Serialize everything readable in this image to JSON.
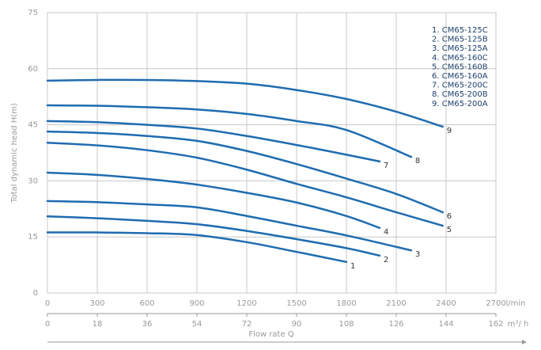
{
  "chart_data": {
    "type": "line",
    "ylabel": "Total dynamic head H(m)",
    "xlabel": "Flow rate Q",
    "xunit": "l/min",
    "x2unit": "m³/ h",
    "xlim": [
      0,
      2700
    ],
    "xticks": [
      0,
      300,
      600,
      900,
      1200,
      1500,
      1800,
      2100,
      2400,
      2700
    ],
    "x2lim": [
      0,
      162
    ],
    "x2ticks": [
      0,
      18,
      36,
      54,
      72,
      90,
      108,
      126,
      144,
      162
    ],
    "ylim": [
      0,
      75
    ],
    "yticks": [
      0,
      15,
      30,
      45,
      60,
      75
    ],
    "grid": true,
    "color": "#1e6cb0",
    "series": [
      {
        "name": "1. CM65-125C",
        "label": "1",
        "x": [
          0,
          300,
          600,
          900,
          1200,
          1500,
          1800
        ],
        "values": [
          16.2,
          16.2,
          16,
          15.5,
          13.6,
          11,
          8.3
        ]
      },
      {
        "name": "2. CM65-125B",
        "label": "2",
        "x": [
          0,
          300,
          600,
          900,
          1200,
          1500,
          1800,
          2000
        ],
        "values": [
          20.5,
          20,
          19.3,
          18.4,
          16.6,
          14.4,
          12,
          10
        ]
      },
      {
        "name": "3. CM65-125A",
        "label": "3",
        "x": [
          0,
          300,
          600,
          900,
          1200,
          1500,
          1800,
          2190
        ],
        "values": [
          24.6,
          24.3,
          23.7,
          22.9,
          20.6,
          18,
          15.4,
          11.4
        ]
      },
      {
        "name": "4. CM65-160C",
        "label": "4",
        "x": [
          0,
          300,
          600,
          900,
          1200,
          1500,
          1800,
          2000
        ],
        "values": [
          32.2,
          31.6,
          30.5,
          29,
          26.8,
          24.2,
          20.6,
          17.4
        ]
      },
      {
        "name": "5. CM65-160B",
        "label": "5",
        "x": [
          0,
          300,
          600,
          900,
          1200,
          1500,
          1800,
          2100,
          2380
        ],
        "values": [
          40.2,
          39.5,
          38.2,
          36.2,
          33,
          29.2,
          25.6,
          21.6,
          18
        ]
      },
      {
        "name": "6. CM65-160A",
        "label": "6",
        "x": [
          0,
          300,
          600,
          900,
          1200,
          1500,
          1800,
          2100,
          2380
        ],
        "values": [
          43.2,
          42.8,
          42,
          40.7,
          38,
          34.5,
          30.6,
          26.5,
          21.6
        ]
      },
      {
        "name": "7. CM65-200C",
        "label": "7",
        "x": [
          0,
          300,
          600,
          900,
          1200,
          1500,
          1800,
          2000
        ],
        "values": [
          46,
          45.7,
          45,
          44,
          42,
          39.6,
          37,
          35.2
        ]
      },
      {
        "name": "8. CM65-200B",
        "label": "8",
        "x": [
          0,
          300,
          600,
          900,
          1200,
          1500,
          1800,
          2190
        ],
        "values": [
          50.2,
          50.1,
          49.7,
          49.1,
          47.9,
          46,
          43.6,
          36.4
        ]
      },
      {
        "name": "9. CM65-200A",
        "label": "9",
        "x": [
          0,
          300,
          600,
          900,
          1200,
          1500,
          1800,
          2100,
          2380
        ],
        "values": [
          56.8,
          57,
          57,
          56.7,
          56,
          54.3,
          51.9,
          48.5,
          44.5
        ]
      }
    ]
  }
}
